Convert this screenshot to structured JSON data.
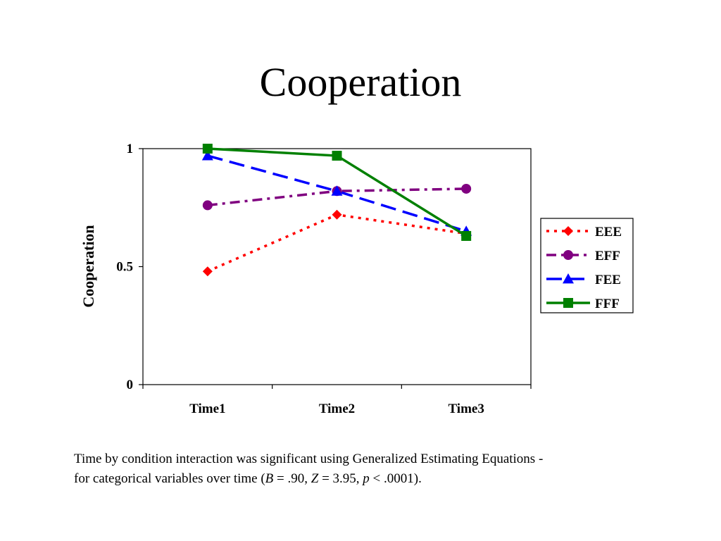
{
  "slide": {
    "title": "Cooperation",
    "caption": {
      "line1": "Time by condition interaction was significant using Generalized Estimating Equations -",
      "line2_prefix": "for categorical variables over time (",
      "b_label": "B",
      "b_value": " = .90, ",
      "z_label": "Z",
      "z_value": " = 3.95, ",
      "p_label": "p",
      "p_value": " < .0001)."
    }
  },
  "chart_data": {
    "type": "line",
    "title": "",
    "xlabel": "",
    "ylabel": "Cooperation",
    "categories": [
      "Time1",
      "Time2",
      "Time3"
    ],
    "ylim": [
      0,
      1
    ],
    "yticks": [
      {
        "value": 0,
        "label": "0"
      },
      {
        "value": 0.5,
        "label": "0.5"
      },
      {
        "value": 1,
        "label": "1"
      }
    ],
    "grid": false,
    "legend_position": "right",
    "series": [
      {
        "name": "EEE",
        "values": [
          0.48,
          0.72,
          0.64
        ],
        "color": "#ff0000",
        "marker": "diamond",
        "dash": "dotted"
      },
      {
        "name": "EFF",
        "values": [
          0.76,
          0.82,
          0.83
        ],
        "color": "#800080",
        "marker": "circle",
        "dash": "dashdot"
      },
      {
        "name": "FEE",
        "values": [
          0.97,
          0.82,
          0.65
        ],
        "color": "#0000ff",
        "marker": "triangle",
        "dash": "dashed"
      },
      {
        "name": "FFF",
        "values": [
          1.0,
          0.97,
          0.63
        ],
        "color": "#008000",
        "marker": "square",
        "dash": "solid"
      }
    ]
  }
}
